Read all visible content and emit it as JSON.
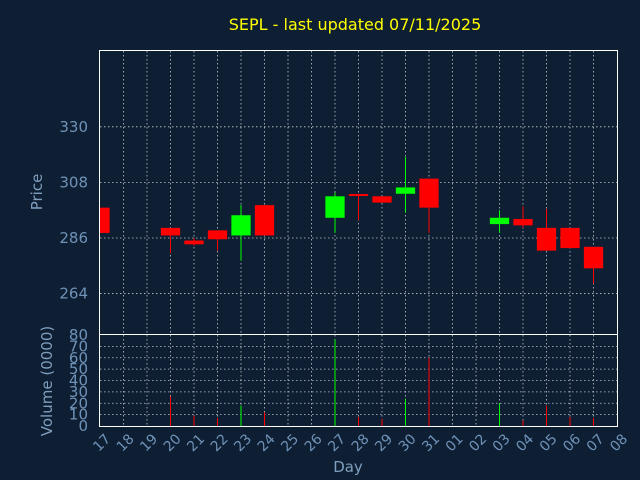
{
  "chart_data": {
    "type": "candlestick",
    "title": "SEPL - last updated 07/11/2025",
    "xlabel": "Day",
    "price_panel": {
      "ylabel": "Price",
      "ylim": [
        248,
        360
      ],
      "yticks": [
        264,
        286,
        308,
        330
      ],
      "grid": true
    },
    "volume_panel": {
      "ylabel": "Volume (0000)",
      "ylim": [
        0,
        80
      ],
      "yticks": [
        0,
        10,
        20,
        30,
        40,
        50,
        60,
        70,
        80
      ],
      "grid": true
    },
    "x_ticks": [
      "17",
      "18",
      "19",
      "20",
      "21",
      "22",
      "23",
      "24",
      "25",
      "26",
      "27",
      "28",
      "29",
      "30",
      "31",
      "01",
      "02",
      "03",
      "04",
      "05",
      "06",
      "07",
      "08"
    ],
    "colors": {
      "up": "#00ff00",
      "down": "#ff0000"
    },
    "candles": [
      {
        "day": "17",
        "open": 298,
        "high": 298,
        "low": 288,
        "close": 288,
        "volume": 0
      },
      {
        "day": "20",
        "open": 290,
        "high": 290,
        "low": 280,
        "close": 287,
        "volume": 26
      },
      {
        "day": "21",
        "open": 285,
        "high": 286,
        "low": 283,
        "close": 283.5,
        "volume": 9
      },
      {
        "day": "22",
        "open": 289,
        "high": 289,
        "low": 281,
        "close": 285.5,
        "volume": 7
      },
      {
        "day": "23",
        "open": 287,
        "high": 299,
        "low": 277,
        "close": 295,
        "volume": 18
      },
      {
        "day": "24",
        "open": 299,
        "high": 299,
        "low": 287,
        "close": 287,
        "volume": 12
      },
      {
        "day": "27",
        "open": 294,
        "high": 304,
        "low": 288,
        "close": 302.5,
        "volume": 76
      },
      {
        "day": "28",
        "open": 303,
        "high": 303.5,
        "low": 293,
        "close": 302.5,
        "volume": 8
      },
      {
        "day": "29",
        "open": 302.5,
        "high": 302.5,
        "low": 300,
        "close": 300,
        "volume": 6
      },
      {
        "day": "30",
        "open": 303.5,
        "high": 318,
        "low": 296,
        "close": 306,
        "volume": 24
      },
      {
        "day": "31",
        "open": 309.5,
        "high": 309.5,
        "low": 288,
        "close": 298,
        "volume": 60
      },
      {
        "day": "03",
        "open": 291.5,
        "high": 297,
        "low": 288,
        "close": 294,
        "volume": 20
      },
      {
        "day": "04",
        "open": 293.5,
        "high": 298.5,
        "low": 290,
        "close": 291,
        "volume": 5
      },
      {
        "day": "05",
        "open": 290,
        "high": 297.5,
        "low": 281,
        "close": 281,
        "volume": 18
      },
      {
        "day": "06",
        "open": 290,
        "high": 290,
        "low": 282,
        "close": 282,
        "volume": 8
      },
      {
        "day": "07",
        "open": 282.5,
        "high": 282.5,
        "low": 268,
        "close": 274,
        "volume": 7
      }
    ]
  }
}
